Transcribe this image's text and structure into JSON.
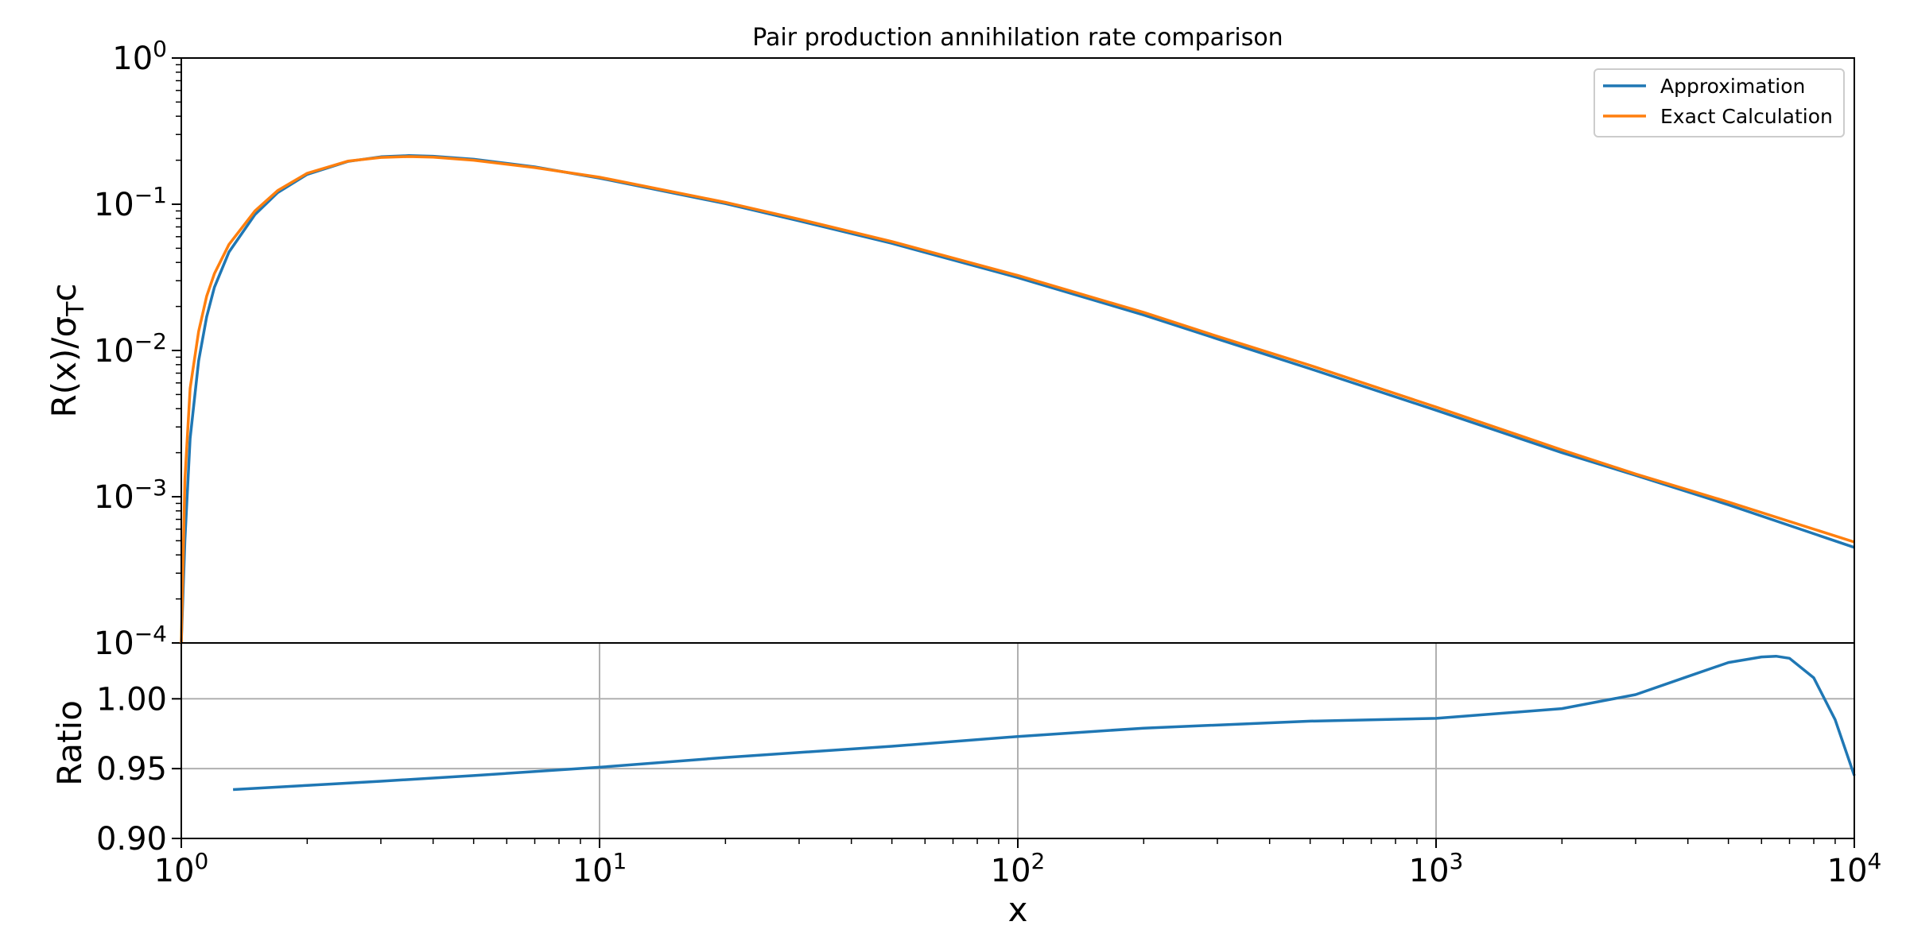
{
  "chart_data": {
    "title": "Pair production annihilation rate comparison",
    "xlabel": "x",
    "x_scale": "log",
    "xlim": [
      1,
      10000
    ],
    "x_ticks": [
      {
        "base": "10",
        "exp": "0",
        "value": 1
      },
      {
        "base": "10",
        "exp": "1",
        "value": 10
      },
      {
        "base": "10",
        "exp": "2",
        "value": 100
      },
      {
        "base": "10",
        "exp": "3",
        "value": 1000
      },
      {
        "base": "10",
        "exp": "4",
        "value": 10000
      }
    ],
    "top_panel": {
      "type": "line",
      "ylabel": "R(x)/σ",
      "ylabel_sub": "T",
      "ylabel_tail": "c",
      "y_scale": "log",
      "ylim": [
        0.0001,
        1
      ],
      "y_ticks": [
        {
          "base": "10",
          "exp": "0",
          "value": 1
        },
        {
          "base": "10",
          "exp": "−1",
          "value": 0.1
        },
        {
          "base": "10",
          "exp": "−2",
          "value": 0.01
        },
        {
          "base": "10",
          "exp": "−3",
          "value": 0.001
        },
        {
          "base": "10",
          "exp": "−4",
          "value": 0.0001
        }
      ],
      "legend_position": "top-right",
      "series": [
        {
          "name": "Approximation",
          "color": "#1f77b4",
          "x": [
            1.0,
            1.02,
            1.05,
            1.1,
            1.15,
            1.2,
            1.3,
            1.5,
            1.7,
            2,
            2.5,
            3,
            3.5,
            4,
            5,
            7,
            10,
            20,
            30,
            50,
            100,
            200,
            300,
            500,
            1000,
            2000,
            3000,
            5000,
            10000
          ],
          "y": [
            8e-05,
            0.0005,
            0.0025,
            0.0085,
            0.017,
            0.027,
            0.047,
            0.085,
            0.12,
            0.16,
            0.196,
            0.211,
            0.215,
            0.213,
            0.203,
            0.18,
            0.151,
            0.101,
            0.077,
            0.054,
            0.0315,
            0.0175,
            0.012,
            0.0075,
            0.0039,
            0.002,
            0.0014,
            0.00088,
            0.00045
          ]
        },
        {
          "name": "Exact Calculation",
          "color": "#ff7f0e",
          "x": [
            1.0,
            1.02,
            1.05,
            1.1,
            1.15,
            1.2,
            1.3,
            1.5,
            1.7,
            2,
            2.5,
            3,
            3.5,
            4,
            5,
            7,
            10,
            20,
            30,
            50,
            100,
            200,
            300,
            500,
            1000,
            2000,
            3000,
            5000,
            10000
          ],
          "y": [
            8e-05,
            0.0013,
            0.0055,
            0.0135,
            0.0235,
            0.0335,
            0.053,
            0.09,
            0.124,
            0.163,
            0.197,
            0.209,
            0.212,
            0.21,
            0.2,
            0.178,
            0.153,
            0.103,
            0.079,
            0.0556,
            0.0326,
            0.0182,
            0.0125,
            0.0079,
            0.0041,
            0.00209,
            0.00143,
            0.00092,
            0.00049
          ]
        }
      ]
    },
    "bottom_panel": {
      "type": "line",
      "ylabel": "Ratio",
      "ylim": [
        0.9,
        1.04
      ],
      "grid": true,
      "y_ticks": [
        "1.00",
        "0.95",
        "0.90"
      ],
      "y_tick_values": [
        1.0,
        0.95,
        0.9
      ],
      "series": [
        {
          "name": "Ratio",
          "color": "#1f77b4",
          "x": [
            1.33,
            2,
            3,
            5,
            10,
            20,
            50,
            100,
            200,
            500,
            1000,
            2000,
            3000,
            4000,
            5000,
            6000,
            6500,
            7000,
            8000,
            9000,
            10000
          ],
          "y": [
            0.935,
            0.938,
            0.941,
            0.945,
            0.951,
            0.958,
            0.966,
            0.973,
            0.979,
            0.984,
            0.986,
            0.993,
            1.003,
            1.016,
            1.026,
            1.03,
            1.0305,
            1.029,
            1.015,
            0.985,
            0.945
          ]
        }
      ]
    }
  }
}
